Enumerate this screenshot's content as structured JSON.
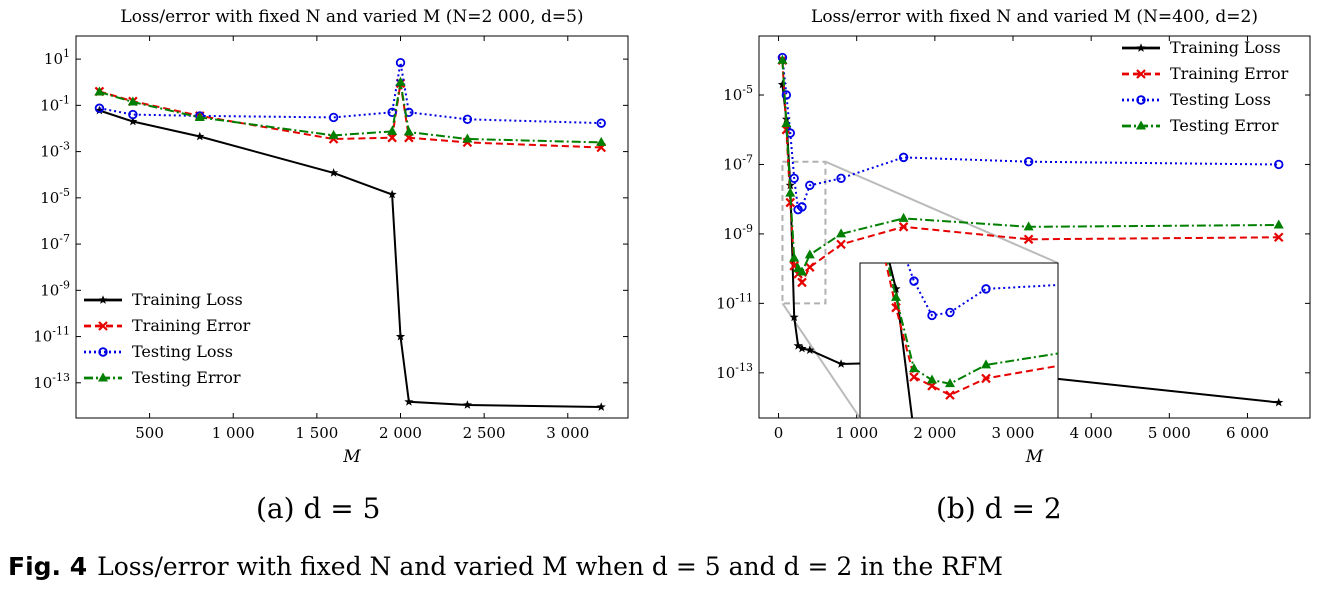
{
  "chart_data": [
    {
      "type": "line",
      "yscale": "log",
      "title": "Loss/error with fixed N and varied M (N=2 000, d=5)",
      "xlabel": "M",
      "ylabel": "",
      "xlim": [
        60,
        3360
      ],
      "ylim": [
        3e-15,
        100
      ],
      "xticks": [
        500,
        1000,
        1500,
        2000,
        2500,
        3000
      ],
      "xtick_labels": [
        "500",
        "1 000",
        "1 500",
        "2 000",
        "2 500",
        "3 000"
      ],
      "yticks": [
        10,
        0.1,
        0.001,
        1e-05,
        1e-07,
        1e-09,
        1e-11,
        1e-13
      ],
      "ytick_labels": [
        "10^1",
        "10^-1",
        "10^-3",
        "10^-5",
        "10^-7",
        "10^-9",
        "10^-11",
        "10^-13"
      ],
      "legend": "lower-left",
      "sublabel": "(a) d = 5",
      "series": [
        {
          "name": "Training Loss",
          "color": "#000000",
          "dash": "",
          "marker": "star",
          "x": [
            200,
            400,
            800,
            1600,
            1950,
            2000,
            2050,
            2400,
            3200
          ],
          "y": [
            0.06,
            0.02,
            0.0045,
            0.00012,
            1.4e-05,
            1e-11,
            1.5e-14,
            1.1e-14,
            9e-15
          ]
        },
        {
          "name": "Training Error",
          "color": "#e60000",
          "dash": "7,4",
          "marker": "x",
          "x": [
            200,
            400,
            800,
            1600,
            1950,
            2000,
            2050,
            2400,
            3200
          ],
          "y": [
            0.4,
            0.15,
            0.035,
            0.0035,
            0.004,
            0.9,
            0.004,
            0.0025,
            0.0015
          ]
        },
        {
          "name": "Testing Loss",
          "color": "#0000e6",
          "dash": "2,3",
          "marker": "circle",
          "x": [
            200,
            400,
            800,
            1600,
            1950,
            2000,
            2050,
            2400,
            3200
          ],
          "y": [
            0.075,
            0.04,
            0.035,
            0.03,
            0.05,
            7,
            0.05,
            0.025,
            0.017
          ]
        },
        {
          "name": "Testing Error",
          "color": "#007f00",
          "dash": "9,3,2,3",
          "marker": "triangle",
          "x": [
            200,
            400,
            800,
            1600,
            1950,
            2000,
            2050,
            2400,
            3200
          ],
          "y": [
            0.38,
            0.14,
            0.03,
            0.005,
            0.0075,
            1.0,
            0.007,
            0.0035,
            0.0025
          ]
        }
      ]
    },
    {
      "type": "line",
      "yscale": "log",
      "title": "Loss/error with fixed N and varied M (N=400, d=2)",
      "xlabel": "M",
      "ylabel": "",
      "xlim": [
        -250,
        6800
      ],
      "ylim": [
        5e-15,
        0.0005
      ],
      "xticks": [
        0,
        1000,
        2000,
        3000,
        4000,
        5000,
        6000
      ],
      "xtick_labels": [
        "0",
        "1 000",
        "2 000",
        "3 000",
        "4 000",
        "5 000",
        "6 000"
      ],
      "yticks": [
        1e-05,
        1e-07,
        1e-09,
        1e-11,
        1e-13
      ],
      "ytick_labels": [
        "10^-5",
        "10^-7",
        "10^-9",
        "10^-11",
        "10^-13"
      ],
      "legend": "upper-right",
      "sublabel": "(b) d = 2",
      "zoom_region": {
        "x": [
          50,
          600
        ],
        "y": [
          1e-11,
          1.2e-07
        ]
      },
      "series": [
        {
          "name": "Training Loss",
          "color": "#000000",
          "dash": "",
          "marker": "star",
          "x": [
            50,
            100,
            150,
            200,
            250,
            300,
            400,
            800,
            1600,
            6400
          ],
          "y": [
            2e-05,
            2e-06,
            2.5e-08,
            4e-12,
            6e-13,
            5e-13,
            4.5e-13,
            1.8e-13,
            2e-13,
            1.4e-14
          ]
        },
        {
          "name": "Training Error",
          "color": "#e60000",
          "dash": "7,4",
          "marker": "x",
          "x": [
            50,
            100,
            150,
            200,
            250,
            300,
            400,
            800,
            1600,
            3200,
            6400
          ],
          "y": [
            0.0001,
            1e-06,
            8e-09,
            1.2e-10,
            7e-11,
            4e-11,
            1.1e-10,
            5e-10,
            1.6e-09,
            7e-10,
            8e-10
          ]
        },
        {
          "name": "Testing Loss",
          "color": "#0000e6",
          "dash": "2,3",
          "marker": "circle",
          "x": [
            50,
            100,
            150,
            200,
            250,
            300,
            400,
            800,
            1600,
            3200,
            6400
          ],
          "y": [
            0.00012,
            1e-05,
            8e-07,
            4e-08,
            5e-09,
            6e-09,
            2.5e-08,
            4e-08,
            1.6e-07,
            1.2e-07,
            1e-07
          ]
        },
        {
          "name": "Testing Error",
          "color": "#007f00",
          "dash": "9,3,2,3",
          "marker": "triangle",
          "x": [
            50,
            100,
            150,
            200,
            250,
            300,
            400,
            800,
            1600,
            3200,
            6400
          ],
          "y": [
            0.0001,
            1.5e-06,
            1.5e-08,
            2e-10,
            1e-10,
            8e-11,
            2.5e-10,
            1e-09,
            2.8e-09,
            1.6e-09,
            1.8e-09
          ]
        }
      ]
    }
  ],
  "caption": {
    "label": "Fig. 4",
    "text": "Loss/error with fixed N and varied M when d = 5 and d = 2 in the RFM"
  }
}
